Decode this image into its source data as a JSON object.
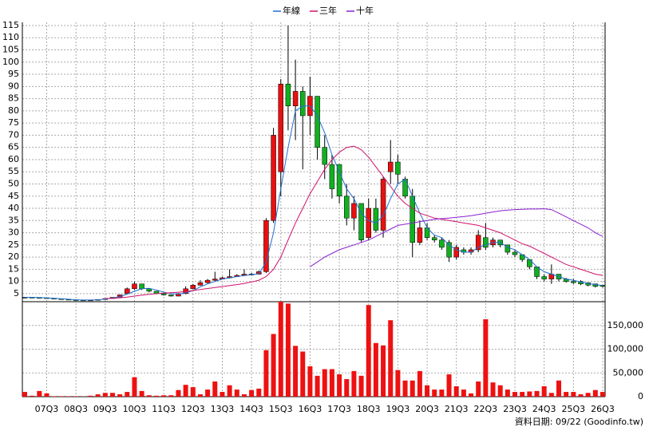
{
  "chart_data": {
    "type": "candlestick",
    "categories": [
      null,
      null,
      null,
      "07Q3",
      null,
      null,
      null,
      "08Q3",
      null,
      null,
      null,
      "09Q3",
      null,
      null,
      null,
      "10Q3",
      null,
      null,
      null,
      "11Q3",
      null,
      null,
      null,
      "12Q3",
      null,
      null,
      null,
      "13Q3",
      null,
      null,
      null,
      "14Q3",
      null,
      null,
      null,
      "15Q3",
      null,
      null,
      null,
      "16Q3",
      null,
      null,
      null,
      "17Q3",
      null,
      null,
      null,
      "18Q3",
      null,
      null,
      null,
      "19Q3",
      null,
      null,
      null,
      "20Q3",
      null,
      null,
      null,
      "21Q3",
      null,
      null,
      null,
      "22Q3",
      null,
      null,
      null,
      "23Q3",
      null,
      null,
      null,
      "24Q3",
      null,
      null,
      null,
      "25Q3",
      null,
      null,
      null,
      "26Q3"
    ],
    "open": [
      3.5,
      3.5,
      3.4,
      3.3,
      3.1,
      2.9,
      2.7,
      2.5,
      2.4,
      2.3,
      2.4,
      2.6,
      3.0,
      3.5,
      5,
      7,
      9,
      7,
      6,
      5,
      4.5,
      4,
      5,
      7,
      8.5,
      9.5,
      10.5,
      11,
      11.5,
      12,
      12.5,
      13,
      13,
      14,
      35,
      55,
      91,
      82,
      88,
      78,
      86,
      65,
      58,
      58,
      45,
      36,
      42,
      28,
      40,
      31,
      55,
      59,
      52,
      45,
      26,
      32,
      28,
      27,
      26,
      20,
      23,
      22,
      23,
      28,
      25,
      27,
      25,
      22,
      21,
      19,
      16,
      12,
      11,
      13,
      11,
      10,
      10,
      9.5,
      9,
      8.5
    ],
    "high": [
      3.5,
      3.5,
      3.4,
      3.3,
      3.1,
      2.9,
      2.7,
      2.5,
      2.4,
      2.4,
      2.6,
      3.0,
      3.5,
      4.6,
      7.5,
      10,
      9,
      7,
      6,
      5,
      4.6,
      5.2,
      8,
      9,
      10.5,
      11,
      14,
      12,
      15,
      13,
      15,
      13.5,
      14.5,
      36,
      73,
      93,
      115,
      101,
      90,
      94,
      86,
      70,
      62,
      58,
      50,
      45,
      42,
      44,
      44,
      53,
      68,
      62,
      53,
      48,
      35,
      34,
      29,
      28,
      27,
      25,
      24,
      24,
      31,
      34,
      28,
      27,
      25,
      23,
      21,
      19,
      16,
      13,
      17,
      13,
      11.5,
      11,
      10.5,
      9.5,
      9,
      8.5
    ],
    "low": [
      3.5,
      3.4,
      3.3,
      3.1,
      2.9,
      2.7,
      2.5,
      2.4,
      2.3,
      2.3,
      2.4,
      2.6,
      3.0,
      3.4,
      4.8,
      6.5,
      6.5,
      5.5,
      4.8,
      4.2,
      3.8,
      3.9,
      4.8,
      6.8,
      8.2,
      9.2,
      10.2,
      10.8,
      11.2,
      11.8,
      12.2,
      12.5,
      12.8,
      13.5,
      34,
      45,
      72,
      68,
      56,
      70,
      60,
      52,
      44,
      42,
      33,
      31,
      26,
      27,
      30,
      28,
      50,
      50,
      44,
      20,
      25,
      27,
      26,
      23,
      18,
      19,
      21,
      21,
      22,
      23,
      24,
      24,
      21,
      20,
      18,
      15,
      11,
      10,
      9,
      10,
      9.5,
      9,
      8.5,
      8,
      7.5,
      7.5
    ],
    "close": [
      3.5,
      3.4,
      3.3,
      3.1,
      2.9,
      2.7,
      2.5,
      2.4,
      2.3,
      2.4,
      2.6,
      3.0,
      3.5,
      4.5,
      7,
      9,
      7,
      6,
      5,
      4.5,
      4,
      5,
      7,
      8.5,
      9.5,
      10.5,
      11,
      11.5,
      12,
      12.5,
      13,
      13,
      14,
      35,
      70,
      91,
      82,
      88,
      78,
      86,
      65,
      58,
      48,
      45,
      36,
      42,
      27,
      40,
      31,
      52,
      59,
      54,
      45,
      26,
      32,
      28,
      27,
      24,
      20,
      24,
      22,
      23,
      29,
      24,
      27,
      25,
      22,
      21,
      19,
      16,
      12,
      11,
      13,
      11,
      10,
      9.5,
      9,
      8.5,
      8,
      8
    ],
    "up_color": "#e81010",
    "down_color": "#10b020",
    "flat_color": "#000000",
    "series": [
      {
        "name": "年線",
        "color": "#1f6fd0",
        "values": [
          3.5,
          3.5,
          3.4,
          3.3,
          3.1,
          2.9,
          2.7,
          2.5,
          2.4,
          2.4,
          2.5,
          2.8,
          3.2,
          3.8,
          4.8,
          6,
          7,
          7.2,
          6.5,
          5.6,
          5,
          4.8,
          5.3,
          6.3,
          7.8,
          9,
          10,
          11,
          11.5,
          12,
          12.4,
          12.8,
          13.2,
          18,
          30,
          48,
          65,
          80,
          82,
          82,
          78,
          71,
          62,
          55,
          48,
          44,
          38,
          35,
          34,
          37,
          44,
          50,
          52,
          45,
          38,
          32,
          29,
          28,
          25,
          23,
          22,
          22,
          24,
          25,
          26,
          26,
          24,
          23,
          21,
          19,
          16,
          14,
          13,
          12,
          11,
          10.5,
          9.8,
          9.2,
          8.7,
          8.3
        ]
      },
      {
        "name": "三年",
        "color": "#d0106a",
        "values": [
          null,
          null,
          null,
          null,
          null,
          null,
          null,
          null,
          null,
          null,
          null,
          3.0,
          3.1,
          3.3,
          3.6,
          4.0,
          4.4,
          4.7,
          5.0,
          5.2,
          5.4,
          5.6,
          5.9,
          6.3,
          6.7,
          7.1,
          7.5,
          7.9,
          8.3,
          8.7,
          9.2,
          9.8,
          10.5,
          12,
          15,
          20,
          27,
          34,
          40,
          46,
          51,
          56,
          60,
          63,
          65,
          65.5,
          64,
          61,
          57,
          53,
          49,
          45,
          42,
          40,
          38,
          37,
          36,
          35.5,
          35,
          34.5,
          34,
          33.5,
          33,
          32,
          31,
          30,
          28.5,
          27,
          25.5,
          24.5,
          23,
          21.5,
          20,
          18.5,
          17,
          16,
          15,
          14,
          13,
          12.5
        ]
      },
      {
        "name": "十年",
        "color": "#8a20d0",
        "values": [
          null,
          null,
          null,
          null,
          null,
          null,
          null,
          null,
          null,
          null,
          null,
          null,
          null,
          null,
          null,
          null,
          null,
          null,
          null,
          null,
          null,
          null,
          null,
          null,
          null,
          null,
          null,
          null,
          null,
          null,
          null,
          null,
          null,
          null,
          null,
          null,
          null,
          null,
          null,
          16,
          18,
          20,
          21.5,
          23,
          24,
          25,
          26,
          27,
          28.5,
          30,
          31.5,
          33,
          33.5,
          34,
          34.5,
          35,
          35.5,
          35.8,
          36,
          36.3,
          36.6,
          37,
          37.5,
          38,
          38.5,
          39,
          39.3,
          39.5,
          39.6,
          39.7,
          39.7,
          39.8,
          39.5,
          38,
          36.5,
          35,
          33.5,
          32,
          30,
          28.5
        ]
      }
    ],
    "legend": "top",
    "grid": true,
    "ylim": [
      1.7,
      116.3
    ],
    "yticks": [
      5,
      10,
      15,
      20,
      25,
      30,
      35,
      40,
      45,
      50,
      55,
      60,
      65,
      70,
      75,
      80,
      85,
      90,
      95,
      100,
      105,
      110,
      115
    ],
    "volume": {
      "color": "#ee1111",
      "values": [
        10000,
        2000,
        12000,
        7000,
        1000,
        1000,
        1000,
        1000,
        500,
        2000,
        5000,
        8000,
        8000,
        5000,
        10000,
        41000,
        12000,
        3000,
        2000,
        3000,
        3000,
        14000,
        25000,
        20000,
        5000,
        15000,
        32000,
        10000,
        24000,
        15000,
        5000,
        14000,
        17000,
        98000,
        132000,
        200000,
        196000,
        107000,
        95000,
        64000,
        44000,
        58000,
        58000,
        47000,
        37000,
        54000,
        44000,
        193000,
        113000,
        108000,
        161000,
        56000,
        34000,
        34000,
        54000,
        24000,
        15000,
        15000,
        47000,
        22000,
        15000,
        7000,
        32000,
        163000,
        30000,
        24000,
        15000,
        10000,
        10000,
        11000,
        12000,
        22000,
        8000,
        34000,
        10000,
        10000,
        5000,
        8000,
        14000,
        10000
      ],
      "ylim": [
        0,
        200000
      ],
      "yticks": [
        0,
        {
          "value": 50000,
          "label": "50,000"
        },
        {
          "value": 100000,
          "label": "100,000"
        },
        {
          "value": 150000,
          "label": "150,000"
        }
      ]
    },
    "footer": "資料日期: 09/22 (Goodinfo.tw)"
  }
}
